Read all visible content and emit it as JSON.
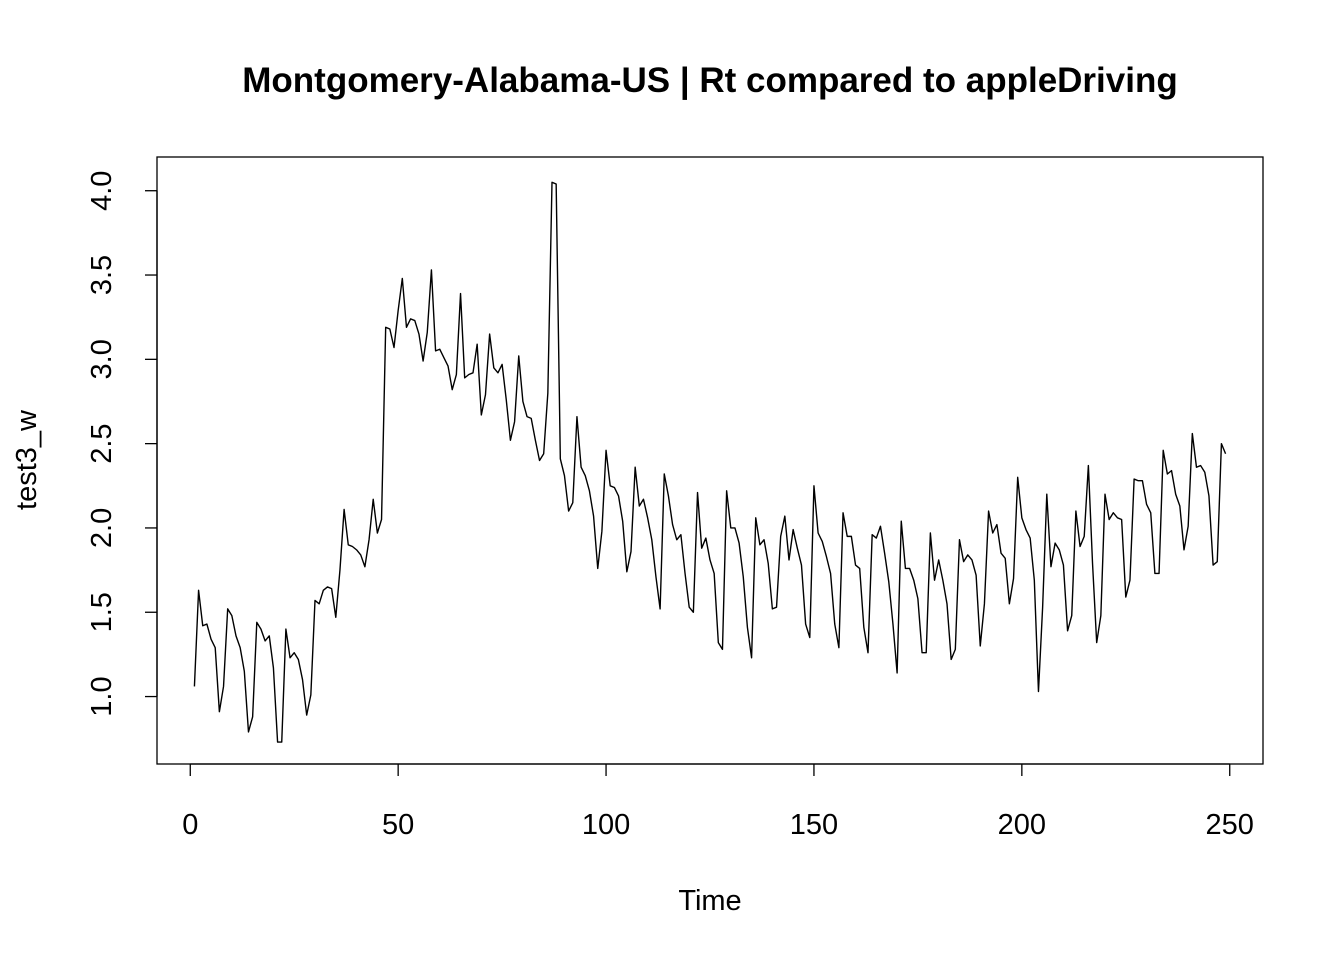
{
  "chart_data": {
    "type": "line",
    "title": "Montgomery-Alabama-US | Rt compared to appleDriving",
    "xlabel": "Time",
    "ylabel": "test3_w",
    "xlim": [
      -8,
      258
    ],
    "ylim": [
      0.6,
      4.2
    ],
    "xticks": [
      0,
      50,
      100,
      150,
      200,
      250
    ],
    "yticks": [
      1.0,
      1.5,
      2.0,
      2.5,
      3.0,
      3.5,
      4.0
    ],
    "xtick_labels": [
      "0",
      "50",
      "100",
      "150",
      "200",
      "250"
    ],
    "ytick_labels": [
      "1.0",
      "1.5",
      "2.0",
      "2.5",
      "3.0",
      "3.5",
      "4.0"
    ],
    "grid": false,
    "legend": "none",
    "series": [
      {
        "x_start": 1,
        "x_step": 1,
        "values": [
          1.06,
          1.63,
          1.42,
          1.43,
          1.34,
          1.29,
          0.91,
          1.06,
          1.52,
          1.48,
          1.36,
          1.29,
          1.15,
          0.79,
          0.88,
          1.44,
          1.4,
          1.33,
          1.36,
          1.17,
          0.73,
          0.73,
          1.4,
          1.23,
          1.26,
          1.22,
          1.1,
          0.89,
          1.01,
          1.57,
          1.55,
          1.63,
          1.65,
          1.64,
          1.47,
          1.75,
          2.11,
          1.9,
          1.89,
          1.87,
          1.84,
          1.77,
          1.93,
          2.17,
          1.97,
          2.05,
          3.19,
          3.18,
          3.07,
          3.29,
          3.48,
          3.19,
          3.24,
          3.23,
          3.15,
          2.99,
          3.16,
          3.53,
          3.05,
          3.06,
          3.01,
          2.96,
          2.82,
          2.91,
          3.39,
          2.89,
          2.91,
          2.92,
          3.09,
          2.67,
          2.79,
          3.15,
          2.95,
          2.92,
          2.97,
          2.76,
          2.52,
          2.63,
          3.02,
          2.75,
          2.66,
          2.65,
          2.52,
          2.4,
          2.44,
          2.8,
          4.05,
          4.04,
          2.41,
          2.31,
          2.1,
          2.15,
          2.66,
          2.36,
          2.31,
          2.22,
          2.07,
          1.76,
          1.98,
          2.46,
          2.25,
          2.24,
          2.19,
          2.04,
          1.74,
          1.86,
          2.36,
          2.13,
          2.17,
          2.06,
          1.93,
          1.71,
          1.52,
          2.32,
          2.19,
          2.02,
          1.93,
          1.96,
          1.73,
          1.53,
          1.5,
          2.21,
          1.88,
          1.94,
          1.81,
          1.73,
          1.32,
          1.28,
          2.22,
          2.0,
          2.0,
          1.91,
          1.71,
          1.41,
          1.23,
          2.06,
          1.9,
          1.93,
          1.79,
          1.52,
          1.53,
          1.95,
          2.07,
          1.81,
          1.99,
          1.88,
          1.78,
          1.43,
          1.35,
          2.25,
          1.97,
          1.92,
          1.83,
          1.73,
          1.43,
          1.29,
          2.09,
          1.95,
          1.95,
          1.78,
          1.76,
          1.41,
          1.26,
          1.96,
          1.94,
          2.01,
          1.85,
          1.68,
          1.43,
          1.14,
          2.04,
          1.76,
          1.76,
          1.69,
          1.58,
          1.26,
          1.26,
          1.97,
          1.69,
          1.81,
          1.69,
          1.55,
          1.22,
          1.28,
          1.93,
          1.8,
          1.84,
          1.81,
          1.72,
          1.3,
          1.55,
          2.1,
          1.97,
          2.02,
          1.85,
          1.82,
          1.55,
          1.7,
          2.3,
          2.06,
          1.99,
          1.94,
          1.69,
          1.03,
          1.53,
          2.2,
          1.77,
          1.91,
          1.87,
          1.78,
          1.39,
          1.48,
          2.1,
          1.89,
          1.95,
          2.37,
          1.79,
          1.32,
          1.48,
          2.2,
          2.05,
          2.09,
          2.06,
          2.05,
          1.59,
          1.69,
          2.29,
          2.28,
          2.28,
          2.14,
          2.09,
          1.73,
          1.73,
          2.46,
          2.32,
          2.34,
          2.2,
          2.13,
          1.87,
          2.01,
          2.56,
          2.36,
          2.37,
          2.33,
          2.19,
          1.78,
          1.8,
          2.5,
          2.44
        ]
      }
    ]
  }
}
